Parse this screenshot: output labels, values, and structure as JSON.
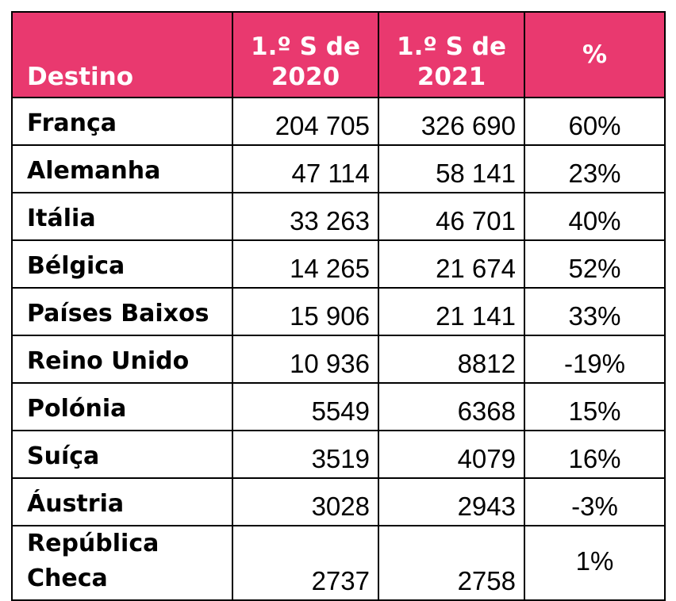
{
  "chart_data": {
    "type": "table",
    "columns": [
      "Destino",
      "1.º S de 2020",
      "1.º S de 2021",
      "%"
    ],
    "rows": [
      {
        "destino": "França",
        "s2020": "204 705",
        "s2021": "326 690",
        "pct": "60%"
      },
      {
        "destino": "Alemanha",
        "s2020": "47 114",
        "s2021": "58 141",
        "pct": "23%"
      },
      {
        "destino": "Itália",
        "s2020": "33 263",
        "s2021": "46 701",
        "pct": "40%"
      },
      {
        "destino": "Bélgica",
        "s2020": "14 265",
        "s2021": "21 674",
        "pct": "52%"
      },
      {
        "destino": "Países Baixos",
        "s2020": "15 906",
        "s2021": "21 141",
        "pct": "33%"
      },
      {
        "destino": "Reino Unido",
        "s2020": "10 936",
        "s2021": "8812",
        "pct": "-19%"
      },
      {
        "destino": "Polónia",
        "s2020": "5549",
        "s2021": "6368",
        "pct": "15%"
      },
      {
        "destino": "Suíça",
        "s2020": "3519",
        "s2021": "4079",
        "pct": "16%"
      },
      {
        "destino": "Áustria",
        "s2020": "3028",
        "s2021": "2943",
        "pct": "-3%"
      },
      {
        "destino": "República Checa",
        "s2020": "2737",
        "s2021": "2758",
        "pct": "1%"
      }
    ]
  },
  "colors": {
    "header_bg": "#e9396f",
    "header_text": "#ffffff",
    "border": "#000000"
  }
}
